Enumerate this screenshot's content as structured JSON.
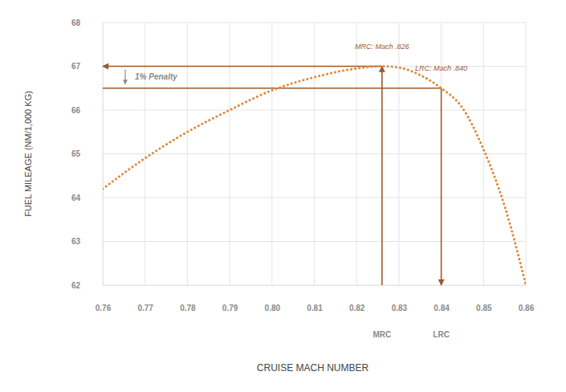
{
  "chart_data": {
    "type": "line",
    "x_label": "CRUISE MACH NUMBER",
    "y_label": "FUEL MILEAGE (NM/1,000 KG)",
    "xlim": [
      0.76,
      0.86
    ],
    "ylim": [
      62,
      68
    ],
    "xticks": [
      0.76,
      0.77,
      0.78,
      0.79,
      {
        "value": 0.8,
        "label": "0.80"
      },
      0.81,
      0.82,
      0.83,
      0.84,
      0.85,
      0.86
    ],
    "yticks": [
      62,
      63,
      64,
      65,
      66,
      67,
      68
    ],
    "grid": true,
    "series": [
      {
        "color": "#e0893a",
        "line_style": "dotted",
        "x": [
          0.76,
          0.77,
          0.78,
          0.79,
          0.8,
          0.81,
          0.82,
          0.826,
          0.83,
          0.835,
          0.84,
          0.845,
          0.85,
          0.855,
          0.86
        ],
        "values": [
          64.2,
          64.9,
          65.5,
          66.0,
          66.45,
          66.75,
          66.95,
          67.0,
          66.97,
          66.8,
          66.5,
          66.05,
          65.1,
          63.8,
          62.0
        ]
      }
    ],
    "annotations": [
      {
        "label": "MRC",
        "text": "MRC: Mach .826",
        "x": 0.826,
        "y": 67.0,
        "color": "#9b5a2a"
      },
      {
        "label": "LRC",
        "text": "LRC: Mach .840",
        "x": 0.84,
        "y": 66.5,
        "color": "#9b5a2a"
      }
    ],
    "penalty": {
      "text": "1% Penalty",
      "color": "#8a8a8a"
    }
  }
}
